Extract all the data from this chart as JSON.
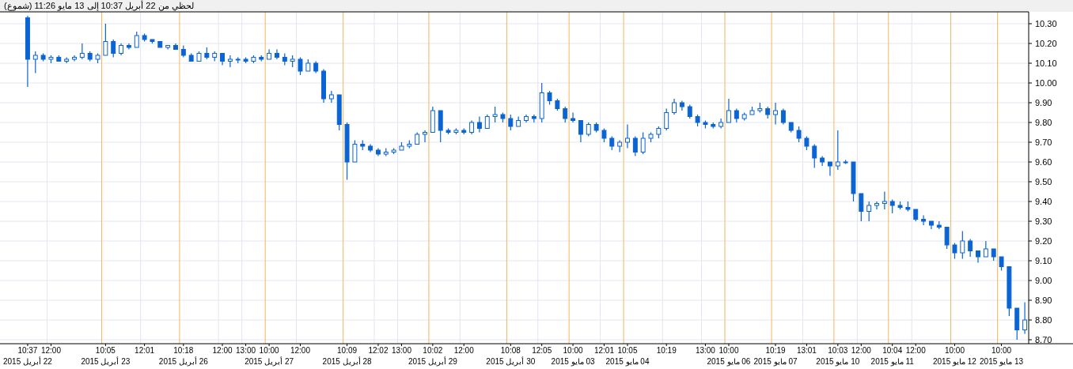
{
  "chart_data": {
    "type": "candlestick",
    "title": "لحظي  من 22 أبريل 10:37 إلى 13 مايو 11:26 (شموع)",
    "categories": [
      "10:37\n22 أبريل 2015",
      null,
      null,
      "12:00",
      null,
      null,
      null,
      null,
      null,
      null,
      "10:05\n23 أبريل 2015",
      null,
      null,
      null,
      null,
      "12:01",
      null,
      null,
      null,
      null,
      "10:18\n26 أبريل 2015",
      null,
      null,
      null,
      null,
      "12:00",
      null,
      null,
      "13:00",
      null,
      null,
      "10:00\n27 أبريل 2015",
      null,
      null,
      null,
      "12:00",
      null,
      null,
      null,
      null,
      null,
      "10:09\n28 أبريل 2015",
      null,
      null,
      null,
      "12:02",
      null,
      null,
      "13:00",
      null,
      null,
      null,
      "10:02\n29 أبريل 2015",
      null,
      null,
      null,
      "12:00",
      null,
      null,
      null,
      null,
      null,
      "10:08\n30 أبريل 2015",
      null,
      null,
      null,
      "12:05",
      null,
      null,
      null,
      "10:00\n03 مايو 2015",
      null,
      null,
      null,
      "12:01",
      null,
      null,
      "10:05\n04 مايو 2015",
      null,
      null,
      null,
      null,
      "10:19",
      null,
      null,
      null,
      null,
      "13:00",
      null,
      null,
      "10:00\n06 مايو 2015",
      null,
      null,
      null,
      null,
      null,
      "10:19\n07 مايو 2015",
      null,
      null,
      null,
      "13:01",
      null,
      null,
      null,
      "10:03\n10 مايو 2015",
      null,
      null,
      "12:00",
      null,
      null,
      null,
      "10:04\n11 مايو 2015",
      null,
      null,
      "12:00",
      null,
      null,
      null,
      null,
      "10:00\n12 مايو 2015",
      null,
      null,
      null,
      null,
      null,
      "10:00\n13 مايو 2015",
      null,
      null,
      null
    ],
    "ohlc": [
      [
        10.33,
        10.34,
        9.98,
        10.12
      ],
      [
        10.12,
        10.16,
        10.05,
        10.14
      ],
      [
        10.14,
        10.15,
        10.11,
        10.12
      ],
      [
        10.12,
        10.14,
        10.1,
        10.13
      ],
      [
        10.13,
        10.14,
        10.11,
        10.11
      ],
      [
        10.11,
        10.13,
        10.1,
        10.12
      ],
      [
        10.12,
        10.14,
        10.11,
        10.13
      ],
      [
        10.13,
        10.2,
        10.12,
        10.15
      ],
      [
        10.15,
        10.16,
        10.11,
        10.12
      ],
      [
        10.12,
        10.15,
        10.1,
        10.14
      ],
      [
        10.14,
        10.3,
        10.14,
        10.21
      ],
      [
        10.21,
        10.22,
        10.13,
        10.15
      ],
      [
        10.15,
        10.2,
        10.14,
        10.19
      ],
      [
        10.19,
        10.2,
        10.17,
        10.18
      ],
      [
        10.18,
        10.26,
        10.18,
        10.24
      ],
      [
        10.24,
        10.25,
        10.21,
        10.22
      ],
      [
        10.22,
        10.22,
        10.2,
        10.21
      ],
      [
        10.21,
        10.21,
        10.18,
        10.18
      ],
      [
        10.18,
        10.19,
        10.17,
        10.19
      ],
      [
        10.19,
        10.2,
        10.17,
        10.17
      ],
      [
        10.17,
        10.19,
        10.13,
        10.14
      ],
      [
        10.14,
        10.15,
        10.11,
        10.11
      ],
      [
        10.11,
        10.16,
        10.11,
        10.15
      ],
      [
        10.15,
        10.18,
        10.12,
        10.13
      ],
      [
        10.13,
        10.16,
        10.11,
        10.15
      ],
      [
        10.15,
        10.15,
        10.09,
        10.11
      ],
      [
        10.11,
        10.14,
        10.08,
        10.12
      ],
      [
        10.12,
        10.13,
        10.1,
        10.12
      ],
      [
        10.12,
        10.13,
        10.1,
        10.11
      ],
      [
        10.11,
        10.14,
        10.1,
        10.13
      ],
      [
        10.13,
        10.14,
        10.11,
        10.12
      ],
      [
        10.12,
        10.17,
        10.12,
        10.15
      ],
      [
        10.15,
        10.17,
        10.12,
        10.13
      ],
      [
        10.13,
        10.15,
        10.09,
        10.11
      ],
      [
        10.11,
        10.14,
        10.08,
        10.12
      ],
      [
        10.12,
        10.13,
        10.04,
        10.06
      ],
      [
        10.06,
        10.12,
        10.06,
        10.1
      ],
      [
        10.1,
        10.11,
        10.05,
        10.06
      ],
      [
        10.06,
        10.07,
        9.9,
        9.92
      ],
      [
        9.92,
        9.96,
        9.9,
        9.94
      ],
      [
        9.94,
        9.94,
        9.76,
        9.79
      ],
      [
        9.79,
        9.8,
        9.51,
        9.6
      ],
      [
        9.6,
        9.71,
        9.6,
        9.69
      ],
      [
        9.69,
        9.71,
        9.66,
        9.68
      ],
      [
        9.68,
        9.69,
        9.65,
        9.66
      ],
      [
        9.66,
        9.67,
        9.63,
        9.64
      ],
      [
        9.64,
        9.67,
        9.63,
        9.65
      ],
      [
        9.65,
        9.67,
        9.64,
        9.66
      ],
      [
        9.66,
        9.7,
        9.66,
        9.68
      ],
      [
        9.68,
        9.71,
        9.67,
        9.69
      ],
      [
        9.69,
        9.75,
        9.69,
        9.74
      ],
      [
        9.74,
        9.76,
        9.7,
        9.75
      ],
      [
        9.75,
        9.88,
        9.75,
        9.86
      ],
      [
        9.86,
        9.86,
        9.7,
        9.76
      ],
      [
        9.76,
        9.77,
        9.74,
        9.75
      ],
      [
        9.75,
        9.77,
        9.74,
        9.76
      ],
      [
        9.76,
        9.77,
        9.74,
        9.75
      ],
      [
        9.75,
        9.81,
        9.74,
        9.8
      ],
      [
        9.8,
        9.83,
        9.75,
        9.77
      ],
      [
        9.77,
        9.84,
        9.77,
        9.83
      ],
      [
        9.83,
        9.88,
        9.8,
        9.84
      ],
      [
        9.84,
        9.85,
        9.8,
        9.82
      ],
      [
        9.82,
        9.84,
        9.76,
        9.78
      ],
      [
        9.78,
        9.83,
        9.78,
        9.81
      ],
      [
        9.81,
        9.84,
        9.8,
        9.83
      ],
      [
        9.83,
        9.84,
        9.8,
        9.82
      ],
      [
        9.82,
        10.0,
        9.8,
        9.95
      ],
      [
        9.95,
        9.96,
        9.89,
        9.91
      ],
      [
        9.91,
        9.92,
        9.86,
        9.87
      ],
      [
        9.87,
        9.88,
        9.8,
        9.82
      ],
      [
        9.82,
        9.85,
        9.8,
        9.81
      ],
      [
        9.81,
        9.81,
        9.7,
        9.74
      ],
      [
        9.74,
        9.8,
        9.73,
        9.79
      ],
      [
        9.79,
        9.8,
        9.75,
        9.76
      ],
      [
        9.76,
        9.77,
        9.7,
        9.72
      ],
      [
        9.72,
        9.73,
        9.66,
        9.68
      ],
      [
        9.68,
        9.71,
        9.65,
        9.7
      ],
      [
        9.7,
        9.79,
        9.67,
        9.72
      ],
      [
        9.72,
        9.73,
        9.63,
        9.65
      ],
      [
        9.65,
        9.75,
        9.64,
        9.72
      ],
      [
        9.72,
        9.75,
        9.7,
        9.74
      ],
      [
        9.74,
        9.78,
        9.72,
        9.77
      ],
      [
        9.77,
        9.87,
        9.76,
        9.85
      ],
      [
        9.85,
        9.92,
        9.84,
        9.9
      ],
      [
        9.9,
        9.91,
        9.86,
        9.88
      ],
      [
        9.88,
        9.89,
        9.82,
        9.83
      ],
      [
        9.83,
        9.84,
        9.78,
        9.8
      ],
      [
        9.8,
        9.81,
        9.77,
        9.79
      ],
      [
        9.79,
        9.8,
        9.77,
        9.78
      ],
      [
        9.78,
        9.82,
        9.77,
        9.8
      ],
      [
        9.8,
        9.92,
        9.8,
        9.86
      ],
      [
        9.86,
        9.87,
        9.8,
        9.82
      ],
      [
        9.82,
        9.85,
        9.81,
        9.84
      ],
      [
        9.84,
        9.88,
        9.84,
        9.86
      ],
      [
        9.86,
        9.9,
        9.85,
        9.87
      ],
      [
        9.87,
        9.88,
        9.82,
        9.84
      ],
      [
        9.84,
        9.9,
        9.79,
        9.86
      ],
      [
        9.86,
        9.87,
        9.79,
        9.8
      ],
      [
        9.8,
        9.8,
        9.75,
        9.76
      ],
      [
        9.76,
        9.78,
        9.7,
        9.72
      ],
      [
        9.72,
        9.73,
        9.66,
        9.68
      ],
      [
        9.68,
        9.69,
        9.57,
        9.62
      ],
      [
        9.62,
        9.63,
        9.58,
        9.6
      ],
      [
        9.6,
        9.6,
        9.53,
        9.58
      ],
      [
        9.58,
        9.76,
        9.56,
        9.6
      ],
      [
        9.6,
        9.61,
        9.59,
        9.6
      ],
      [
        9.6,
        9.6,
        9.4,
        9.44
      ],
      [
        9.44,
        9.44,
        9.3,
        9.35
      ],
      [
        9.35,
        9.4,
        9.3,
        9.38
      ],
      [
        9.38,
        9.4,
        9.36,
        9.39
      ],
      [
        9.39,
        9.45,
        9.36,
        9.4
      ],
      [
        9.4,
        9.41,
        9.34,
        9.38
      ],
      [
        9.38,
        9.4,
        9.36,
        9.37
      ],
      [
        9.37,
        9.4,
        9.35,
        9.36
      ],
      [
        9.36,
        9.36,
        9.3,
        9.31
      ],
      [
        9.31,
        9.33,
        9.28,
        9.3
      ],
      [
        9.3,
        9.3,
        9.26,
        9.28
      ],
      [
        9.28,
        9.3,
        9.26,
        9.27
      ],
      [
        9.27,
        9.27,
        9.16,
        9.18
      ],
      [
        9.18,
        9.19,
        9.11,
        9.14
      ],
      [
        9.14,
        9.25,
        9.11,
        9.2
      ],
      [
        9.2,
        9.21,
        9.12,
        9.15
      ],
      [
        9.15,
        9.15,
        9.09,
        9.12
      ],
      [
        9.12,
        9.2,
        9.12,
        9.16
      ],
      [
        9.16,
        9.16,
        9.1,
        9.12
      ],
      [
        9.12,
        9.12,
        9.05,
        9.07
      ],
      [
        9.07,
        9.07,
        8.82,
        8.86
      ],
      [
        8.86,
        8.86,
        8.7,
        8.75
      ],
      [
        8.75,
        8.89,
        8.73,
        8.8
      ]
    ],
    "color": "#0a64d2",
    "ylim": [
      8.68,
      10.36
    ],
    "yticks": [
      {
        "value": 8.7,
        "label": "8.70"
      },
      {
        "value": 8.8,
        "label": "8.80"
      },
      {
        "value": 8.9,
        "label": "8.90"
      },
      {
        "value": 9.0,
        "label": "9.00"
      },
      {
        "value": 9.1,
        "label": "9.10"
      },
      {
        "value": 9.2,
        "label": "9.20"
      },
      {
        "value": 9.3,
        "label": "9.30"
      },
      {
        "value": 9.4,
        "label": "9.40"
      },
      {
        "value": 9.5,
        "label": "9.50"
      },
      {
        "value": 9.6,
        "label": "9.60"
      },
      {
        "value": 9.7,
        "label": "9.70"
      },
      {
        "value": 9.8,
        "label": "9.80"
      },
      {
        "value": 9.9,
        "label": "9.90"
      },
      {
        "value": 10.0,
        "label": "10.00"
      },
      {
        "value": 10.1,
        "label": "10.10"
      },
      {
        "value": 10.2,
        "label": "10.20"
      },
      {
        "value": 10.3,
        "label": "10.30"
      }
    ],
    "grid": true
  }
}
